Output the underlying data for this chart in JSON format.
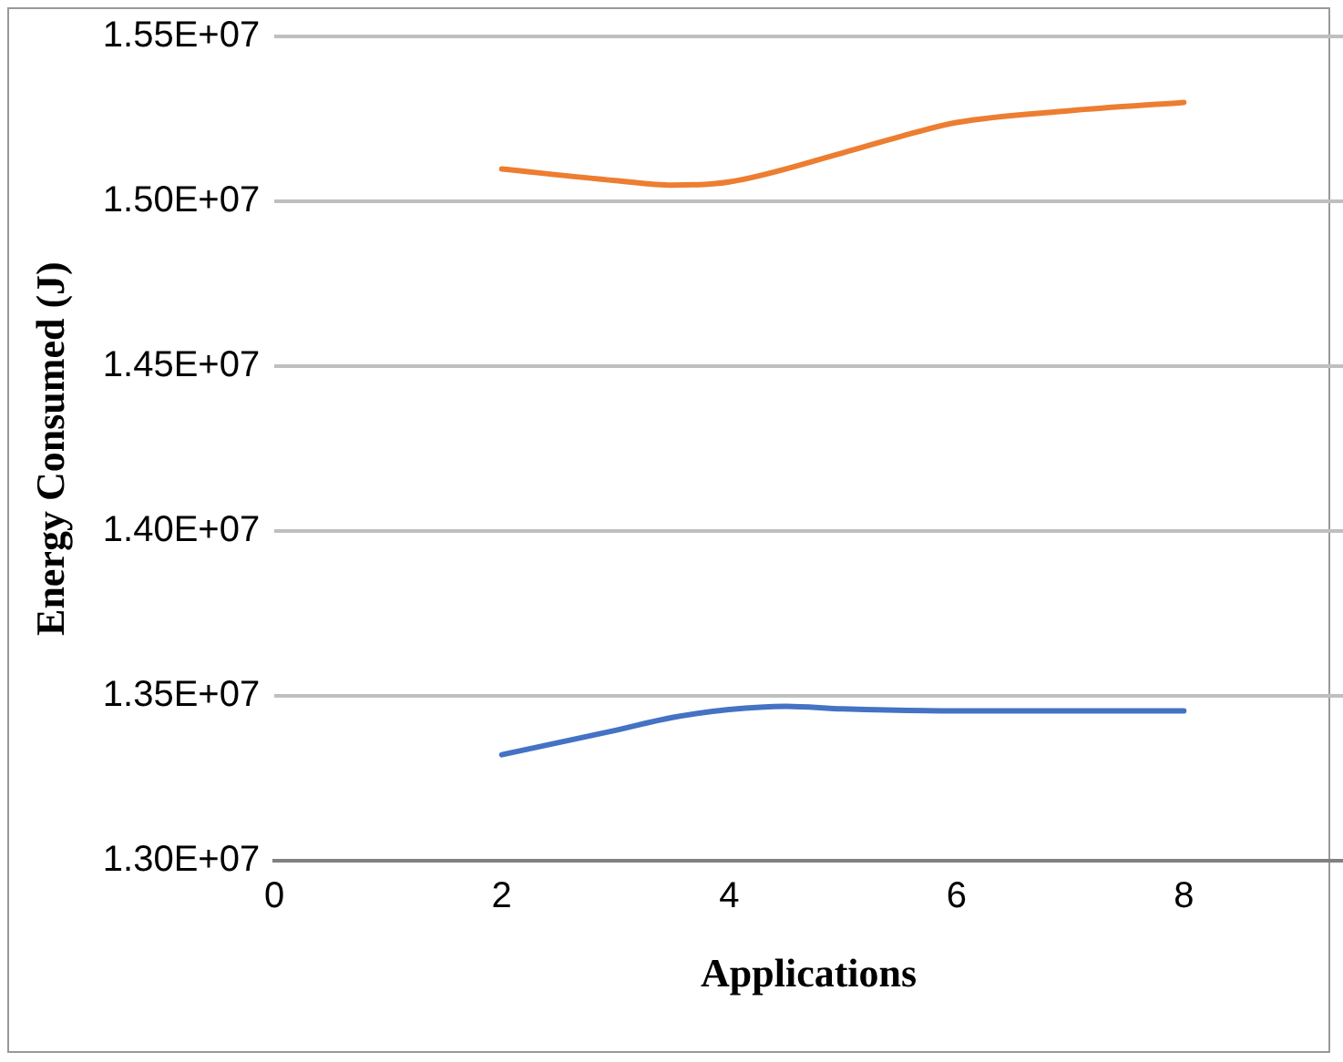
{
  "chart_data": {
    "type": "line",
    "xlabel": "Applications",
    "ylabel": "Energy Consumed (J)",
    "xlim": [
      0,
      9.4
    ],
    "xticks": [
      0,
      2,
      4,
      6,
      8
    ],
    "ylim": [
      13000000,
      15500000
    ],
    "yticks": [
      {
        "value": 13000000,
        "label": "1.30E+07"
      },
      {
        "value": 13500000,
        "label": "1.35E+07"
      },
      {
        "value": 14000000,
        "label": "1.40E+07"
      },
      {
        "value": 14500000,
        "label": "1.45E+07"
      },
      {
        "value": 15000000,
        "label": "1.50E+07"
      },
      {
        "value": 15500000,
        "label": "1.55E+07"
      }
    ],
    "grid": "y",
    "legend": false,
    "marker": "none",
    "line_style": "solid",
    "series": [
      {
        "color": "#4472c4",
        "x": [
          2,
          3,
          3.5,
          4,
          4.5,
          5,
          6,
          7,
          8
        ],
        "values": [
          13322000,
          13396000,
          13435000,
          13459000,
          13469000,
          13461000,
          13455000,
          13455000,
          13455000
        ]
      },
      {
        "color": "#ed7d31",
        "x": [
          2,
          3,
          3.5,
          4,
          5,
          5.5,
          6,
          7,
          8
        ],
        "values": [
          15098000,
          15063000,
          15049000,
          15059000,
          15147000,
          15196000,
          15239000,
          15275000,
          15300000
        ]
      }
    ]
  }
}
